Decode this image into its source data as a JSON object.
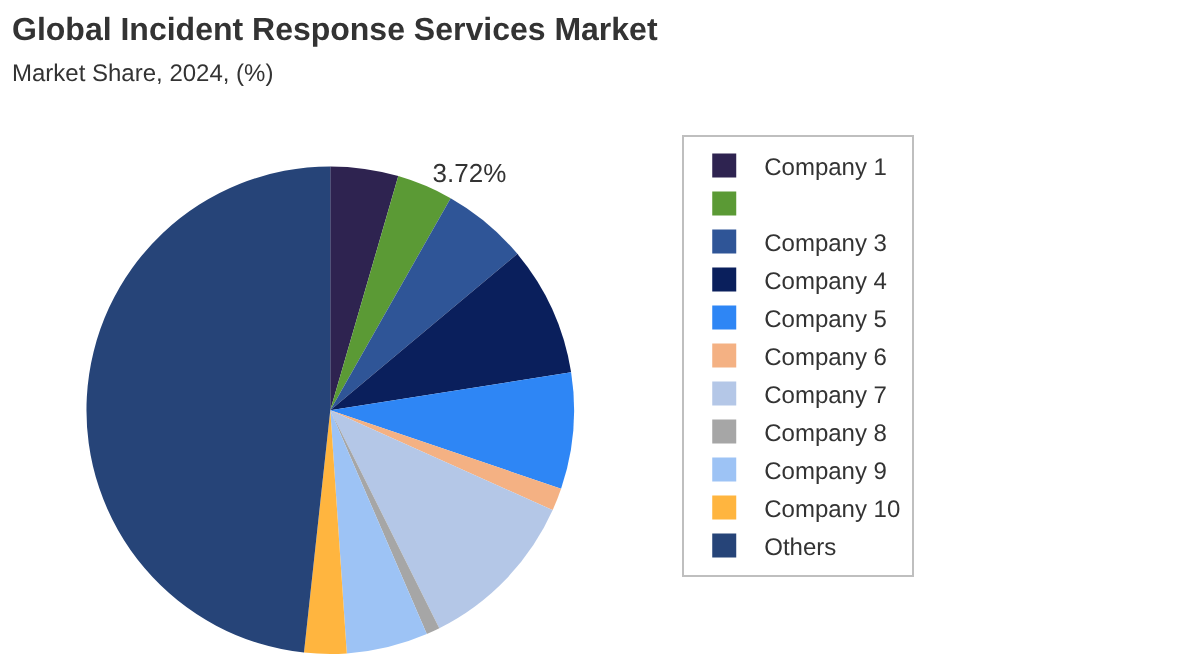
{
  "chart_data": {
    "type": "pie",
    "title": "Global Incident Response Services Market",
    "subtitle": "Market Share, 2024, (%)",
    "categories": [
      "Company 1",
      null,
      "Company 3",
      "Company 4",
      "Company 5",
      "Company 6",
      "Company 7",
      "Company 8",
      "Company 9",
      "Company 10",
      "Others"
    ],
    "values": [
      4.5,
      3.72,
      5.7,
      8.6,
      7.7,
      1.5,
      10.9,
      0.9,
      5.4,
      2.8,
      48.28
    ],
    "colors": [
      "#2e2350",
      "#5b9a35",
      "#2f5597",
      "#0a1f5c",
      "#2e86f5",
      "#f4b183",
      "#b4c7e7",
      "#a6a6a6",
      "#9dc3f5",
      "#ffb53f",
      "#264478"
    ],
    "value_labels": [
      null,
      "3.72%",
      null,
      null,
      null,
      null,
      null,
      null,
      null,
      null,
      null
    ],
    "legend": "right"
  }
}
